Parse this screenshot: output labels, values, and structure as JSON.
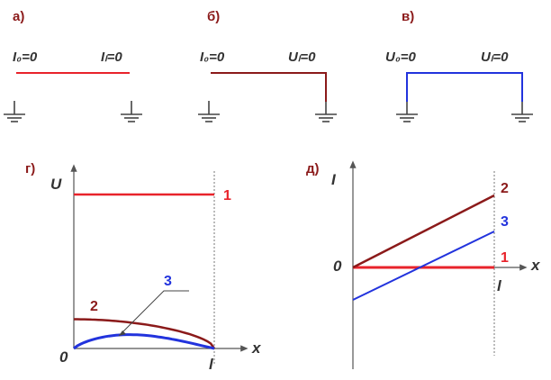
{
  "colors": {
    "red": "#e8232b",
    "brown": "#8b1a1a",
    "blue": "#2233dd",
    "text": "#333333"
  },
  "panels": {
    "a": {
      "title": "а)",
      "left_label": "I₀=0",
      "right_label": "Iₗ=0",
      "line_color": "#e8232b"
    },
    "b": {
      "title": "б)",
      "left_label": "I₀=0",
      "right_label": "Uₗ=0",
      "line_color": "#8b1a1a"
    },
    "v": {
      "title": "в)",
      "left_label": "U₀=0",
      "right_label": "Uₗ=0",
      "line_color": "#2233dd"
    },
    "g": {
      "title": "г)",
      "y_axis": "U",
      "x_axis": "x",
      "origin": "0",
      "end_mark": "l",
      "curves": [
        {
          "label": "1",
          "color": "#e8232b",
          "y_start": 1.0,
          "y_end": 1.0
        },
        {
          "label": "2",
          "color": "#8b1a1a",
          "y_start": 0.19,
          "y_end": 0.0
        },
        {
          "label": "3",
          "color": "#2233dd",
          "y_start": 0.0,
          "y_peak": 0.09,
          "y_end": 0.0
        }
      ]
    },
    "d": {
      "title": "д)",
      "y_axis": "I",
      "x_axis": "x",
      "origin": "0",
      "end_mark": "l",
      "curves": [
        {
          "label": "1",
          "color": "#e8232b",
          "y_start": 0.0,
          "y_end": 0.0
        },
        {
          "label": "2",
          "color": "#8b1a1a",
          "y_start": 0.0,
          "y_end": 1.0
        },
        {
          "label": "3",
          "color": "#2233dd",
          "y_start": -0.45,
          "y_end": 0.5
        }
      ]
    }
  }
}
